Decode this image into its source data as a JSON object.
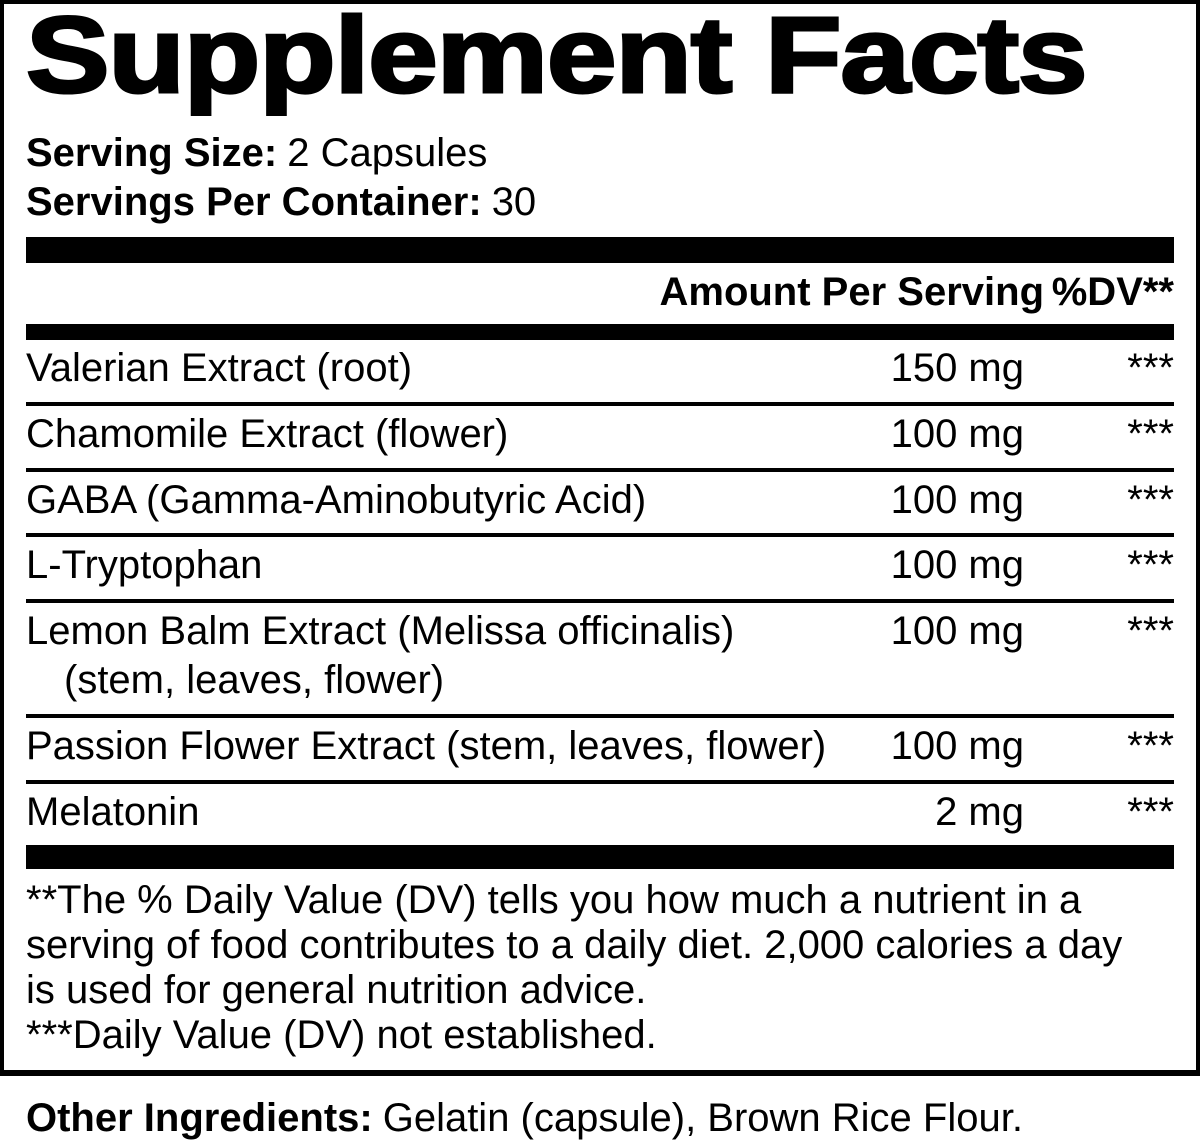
{
  "label": {
    "title": "Supplement Facts",
    "serving": {
      "size_label": "Serving Size:",
      "size_value": "2 Capsules",
      "container_label": "Servings Per Container:",
      "container_value": "30"
    },
    "columns": {
      "amount": "Amount Per Serving",
      "dv": "%DV**"
    },
    "ingredients": [
      {
        "name": "Valerian Extract (root)",
        "sub": "",
        "amount": "150 mg",
        "dv": "***"
      },
      {
        "name": "Chamomile Extract (flower)",
        "sub": "",
        "amount": "100 mg",
        "dv": "***"
      },
      {
        "name": "GABA (Gamma-Aminobutyric Acid)",
        "sub": "",
        "amount": "100 mg",
        "dv": "***"
      },
      {
        "name": "L-Tryptophan",
        "sub": "",
        "amount": "100 mg",
        "dv": "***"
      },
      {
        "name": "Lemon Balm Extract (Melissa officinalis)",
        "sub": "(stem, leaves, flower)",
        "amount": "100 mg",
        "dv": "***"
      },
      {
        "name": "Passion Flower Extract (stem, leaves, flower)",
        "sub": "",
        "amount": "100 mg",
        "dv": "***"
      },
      {
        "name": "Melatonin",
        "sub": "",
        "amount": "2 mg",
        "dv": "***"
      }
    ],
    "footnotes": [
      "**The % Daily Value (DV) tells you how much a nutrient in a serving of food contributes to a daily diet. 2,000 calories a day is used for general nutrition advice.",
      "***Daily Value (DV) not established."
    ],
    "other_ingredients": {
      "label": "Other Ingredients:",
      "value": "Gelatin (capsule), Brown Rice Flour."
    },
    "colors": {
      "text": "#000000",
      "background": "#ffffff"
    }
  }
}
